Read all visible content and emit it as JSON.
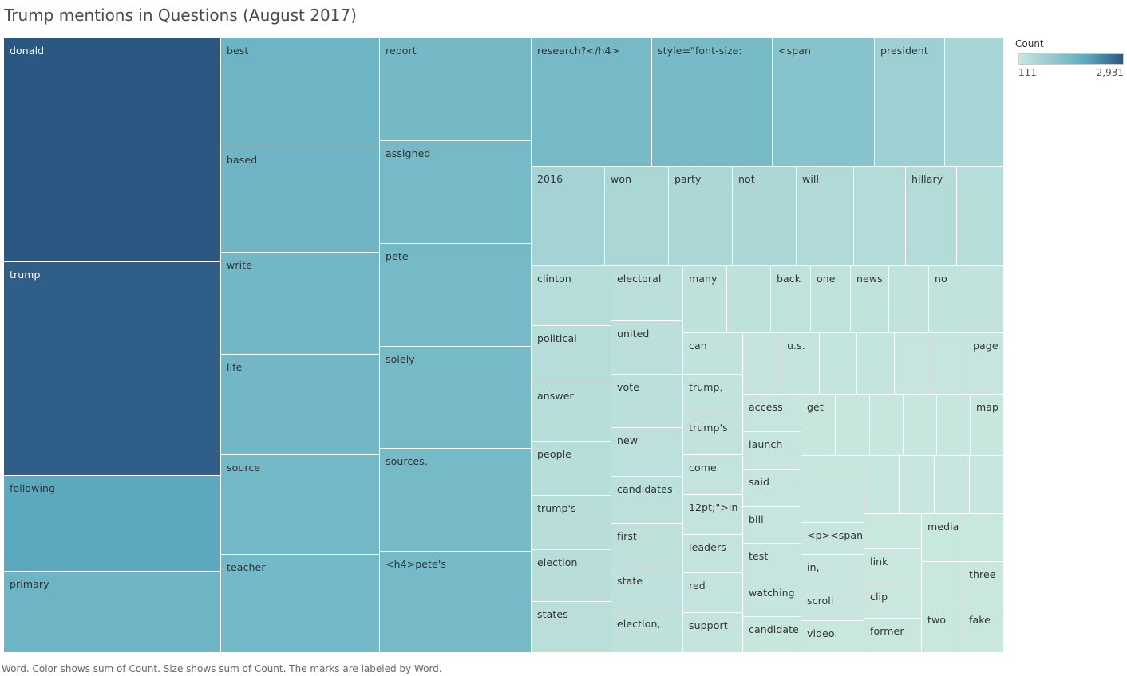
{
  "title": "Trump mentions in Questions (August 2017)",
  "footer": "Word.  Color shows sum of Count.  Size shows sum of Count.  The marks are labeled by Word.",
  "legend": {
    "title": "Count",
    "min_label": "111",
    "max_label": "2,931",
    "color_low": "#c9e7df",
    "color_mid": "#5aaabf",
    "color_high": "#2b5783"
  },
  "chart_data": {
    "type": "treemap",
    "measure": "Count",
    "color_range": [
      111,
      2931
    ],
    "items": [
      {
        "label": "donald",
        "value": 2931
      },
      {
        "label": "trump",
        "value": 2780
      },
      {
        "label": "following",
        "value": 1250
      },
      {
        "label": "primary",
        "value": 1050
      },
      {
        "label": "best",
        "value": 1050
      },
      {
        "label": "based",
        "value": 1030
      },
      {
        "label": "write",
        "value": 1000
      },
      {
        "label": "life",
        "value": 990
      },
      {
        "label": "source",
        "value": 980
      },
      {
        "label": "teacher",
        "value": 970
      },
      {
        "label": "report",
        "value": 960
      },
      {
        "label": "assigned",
        "value": 955
      },
      {
        "label": "pete",
        "value": 950
      },
      {
        "label": "solely",
        "value": 950
      },
      {
        "label": "sources.",
        "value": 950
      },
      {
        "label": "<h4>pete's",
        "value": 945
      },
      {
        "label": "research?</h4>",
        "value": 940
      },
      {
        "label": "style=\"font-size:",
        "value": 930
      },
      {
        "label": "<span",
        "value": 780
      },
      {
        "label": "president",
        "value": 550
      },
      {
        "label": "",
        "value": 450
      },
      {
        "label": "2016",
        "value": 480
      },
      {
        "label": "won",
        "value": 420
      },
      {
        "label": "party",
        "value": 410
      },
      {
        "label": "not",
        "value": 400
      },
      {
        "label": "will",
        "value": 370
      },
      {
        "label": "",
        "value": 330
      },
      {
        "label": "hillary",
        "value": 330
      },
      {
        "label": "",
        "value": 300
      },
      {
        "label": "clinton",
        "value": 300
      },
      {
        "label": "political",
        "value": 290
      },
      {
        "label": "answer",
        "value": 285
      },
      {
        "label": "people",
        "value": 280
      },
      {
        "label": "trump's",
        "value": 275
      },
      {
        "label": "election",
        "value": 270
      },
      {
        "label": "states",
        "value": 265
      },
      {
        "label": "electoral",
        "value": 260
      },
      {
        "label": "united",
        "value": 255
      },
      {
        "label": "vote",
        "value": 250
      },
      {
        "label": "new",
        "value": 245
      },
      {
        "label": "candidates",
        "value": 240
      },
      {
        "label": "first",
        "value": 235
      },
      {
        "label": "state",
        "value": 230
      },
      {
        "label": "election,",
        "value": 225
      },
      {
        "label": "many",
        "value": 220
      },
      {
        "label": "",
        "value": 215
      },
      {
        "label": "back",
        "value": 210
      },
      {
        "label": "one",
        "value": 205
      },
      {
        "label": "news",
        "value": 200
      },
      {
        "label": "",
        "value": 195
      },
      {
        "label": "no",
        "value": 190
      },
      {
        "label": "",
        "value": 185
      },
      {
        "label": "can",
        "value": 185
      },
      {
        "label": "trump,",
        "value": 180
      },
      {
        "label": "trump's",
        "value": 178
      },
      {
        "label": "come",
        "value": 175
      },
      {
        "label": "12pt;\">in",
        "value": 172
      },
      {
        "label": "leaders",
        "value": 170
      },
      {
        "label": "red",
        "value": 168
      },
      {
        "label": "support",
        "value": 165
      },
      {
        "label": "",
        "value": 165
      },
      {
        "label": "u.s.",
        "value": 162
      },
      {
        "label": "",
        "value": 160
      },
      {
        "label": "",
        "value": 158
      },
      {
        "label": "",
        "value": 156
      },
      {
        "label": "",
        "value": 154
      },
      {
        "label": "page",
        "value": 152
      },
      {
        "label": "access",
        "value": 150
      },
      {
        "label": "launch",
        "value": 148
      },
      {
        "label": "said",
        "value": 146
      },
      {
        "label": "bill",
        "value": 144
      },
      {
        "label": "test",
        "value": 142
      },
      {
        "label": "watching",
        "value": 140
      },
      {
        "label": "candidate",
        "value": 138
      },
      {
        "label": "get",
        "value": 136
      },
      {
        "label": "",
        "value": 134
      },
      {
        "label": "",
        "value": 133
      },
      {
        "label": "",
        "value": 132
      },
      {
        "label": "",
        "value": 131
      },
      {
        "label": "map",
        "value": 130
      },
      {
        "label": "",
        "value": 129
      },
      {
        "label": "",
        "value": 128
      },
      {
        "label": "",
        "value": 127
      },
      {
        "label": "",
        "value": 126
      },
      {
        "label": "",
        "value": 125
      },
      {
        "label": "",
        "value": 124
      },
      {
        "label": "<p><span",
        "value": 123
      },
      {
        "label": "in,",
        "value": 122
      },
      {
        "label": "scroll",
        "value": 121
      },
      {
        "label": "video.",
        "value": 120
      },
      {
        "label": "",
        "value": 119
      },
      {
        "label": "media",
        "value": 118
      },
      {
        "label": "",
        "value": 117
      },
      {
        "label": "link",
        "value": 116
      },
      {
        "label": "clip",
        "value": 115
      },
      {
        "label": "former",
        "value": 114
      },
      {
        "label": "",
        "value": 113
      },
      {
        "label": "three",
        "value": 113
      },
      {
        "label": "two",
        "value": 112
      },
      {
        "label": "fake",
        "value": 111
      }
    ]
  }
}
